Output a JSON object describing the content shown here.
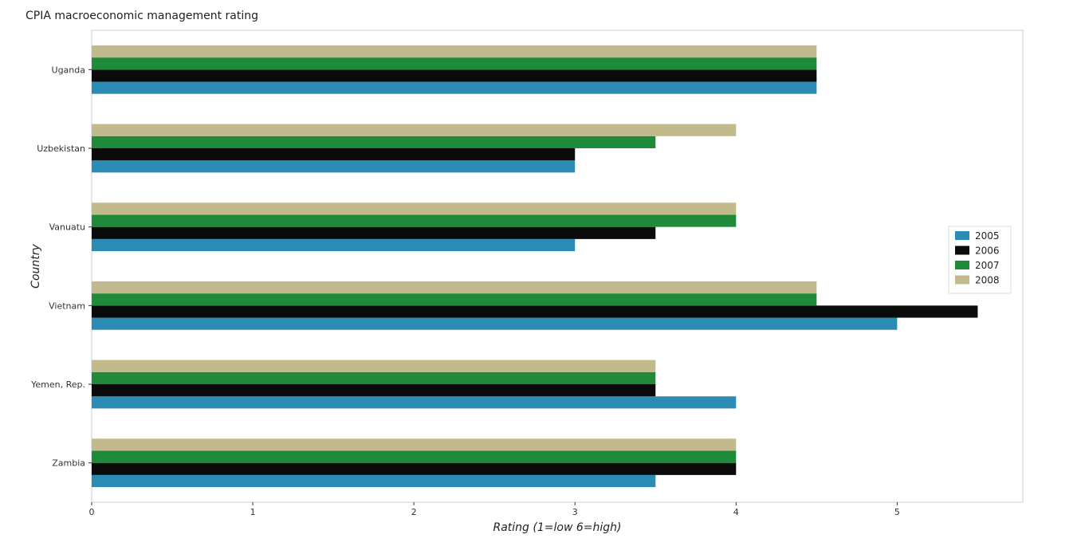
{
  "chart_data": {
    "type": "bar",
    "orientation": "horizontal",
    "title": "CPIA macroeconomic management rating",
    "xlabel": "Rating (1=low 6=high)",
    "ylabel": "Country",
    "xlim": [
      0,
      5.78
    ],
    "xticks": [
      0,
      1,
      2,
      3,
      4,
      5
    ],
    "categories": [
      "Uganda",
      "Uzbekistan",
      "Vanuatu",
      "Vietnam",
      "Yemen, Rep.",
      "Zambia"
    ],
    "series": [
      {
        "name": "2005",
        "color": "#2a8cb5",
        "values": [
          4.5,
          3.0,
          3.0,
          5.0,
          4.0,
          3.5
        ]
      },
      {
        "name": "2006",
        "color": "#0b0b0b",
        "values": [
          4.5,
          3.0,
          3.5,
          5.5,
          3.5,
          4.0
        ]
      },
      {
        "name": "2007",
        "color": "#1f8a3a",
        "values": [
          4.5,
          3.5,
          4.0,
          4.5,
          3.5,
          4.0
        ]
      },
      {
        "name": "2008",
        "color": "#c2b98d",
        "values": [
          4.5,
          4.0,
          4.0,
          4.5,
          3.5,
          4.0
        ]
      }
    ],
    "grid": false,
    "legend_position": "right"
  }
}
